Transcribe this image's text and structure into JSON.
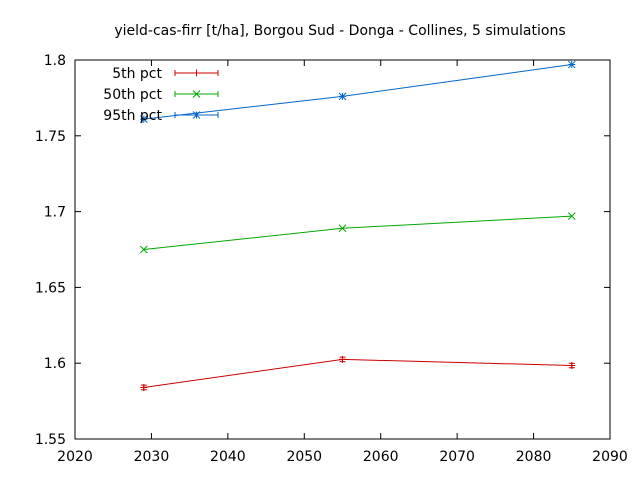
{
  "chart_data": {
    "type": "line",
    "title": "yield-cas-firr [t/ha], Borgou Sud - Donga - Collines, 5 simulations",
    "xlabel": "",
    "ylabel": "",
    "xlim": [
      2020,
      2090
    ],
    "ylim": [
      1.55,
      1.8
    ],
    "xticks": [
      "2020",
      "2030",
      "2040",
      "2050",
      "2060",
      "2070",
      "2080",
      "2090"
    ],
    "yticks": [
      "1.55",
      "1.6",
      "1.65",
      "1.7",
      "1.75",
      "1.8"
    ],
    "grid": false,
    "legend_position": "top-left",
    "x": [
      2029,
      2055,
      2085
    ],
    "series": [
      {
        "name": "5th pct",
        "color": "#cc0000",
        "marker": "plus",
        "values": [
          1.584,
          1.6025,
          1.5985
        ],
        "errors": [
          0.0015,
          0.0015,
          0.0015
        ]
      },
      {
        "name": "50th pct",
        "color": "#00aa00",
        "marker": "cross",
        "values": [
          1.675,
          1.689,
          1.697
        ],
        "errors": [
          0,
          0,
          0
        ]
      },
      {
        "name": "95th pct",
        "color": "#0066cc",
        "marker": "star",
        "values": [
          1.761,
          1.776,
          1.797
        ],
        "errors": [
          0,
          0,
          0
        ]
      }
    ]
  }
}
